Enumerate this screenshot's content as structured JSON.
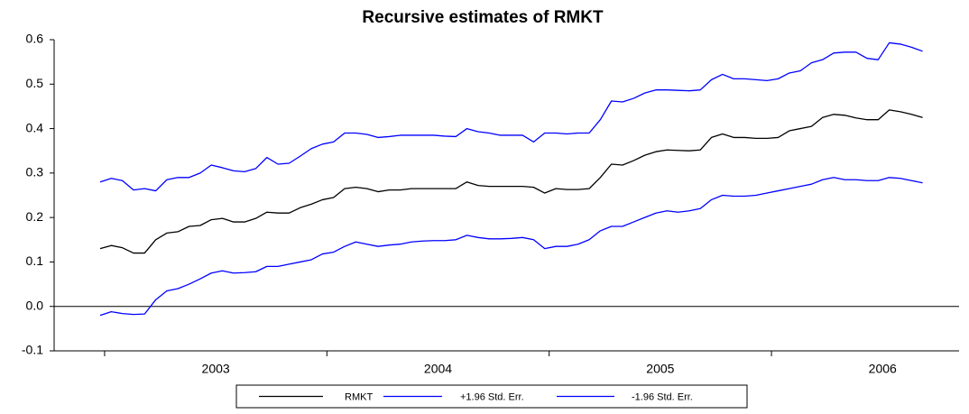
{
  "chart_data": {
    "type": "line",
    "title": "Recursive estimates of RMKT",
    "x": [
      2002.98,
      2003.03,
      2003.08,
      2003.13,
      2003.18,
      2003.23,
      2003.28,
      2003.33,
      2003.38,
      2003.43,
      2003.48,
      2003.53,
      2003.58,
      2003.63,
      2003.68,
      2003.73,
      2003.78,
      2003.83,
      2003.88,
      2003.93,
      2003.98,
      2004.03,
      2004.08,
      2004.13,
      2004.18,
      2004.23,
      2004.28,
      2004.33,
      2004.38,
      2004.43,
      2004.48,
      2004.53,
      2004.58,
      2004.63,
      2004.68,
      2004.73,
      2004.78,
      2004.83,
      2004.88,
      2004.93,
      2004.98,
      2005.03,
      2005.08,
      2005.13,
      2005.18,
      2005.23,
      2005.28,
      2005.33,
      2005.38,
      2005.43,
      2005.48,
      2005.53,
      2005.58,
      2005.63,
      2005.68,
      2005.73,
      2005.78,
      2005.83,
      2005.88,
      2005.93,
      2005.98,
      2006.03,
      2006.08,
      2006.13,
      2006.18,
      2006.23,
      2006.28,
      2006.33,
      2006.38,
      2006.43,
      2006.48,
      2006.53,
      2006.58,
      2006.63,
      2006.68
    ],
    "series": [
      {
        "name": "RMKT",
        "color": "#000000",
        "values": [
          0.13,
          0.137,
          0.132,
          0.12,
          0.12,
          0.15,
          0.165,
          0.168,
          0.18,
          0.182,
          0.195,
          0.198,
          0.19,
          0.19,
          0.198,
          0.212,
          0.21,
          0.21,
          0.222,
          0.23,
          0.24,
          0.245,
          0.265,
          0.268,
          0.265,
          0.258,
          0.262,
          0.262,
          0.265,
          0.265,
          0.265,
          0.265,
          0.265,
          0.28,
          0.272,
          0.27,
          0.27,
          0.27,
          0.27,
          0.268,
          0.255,
          0.265,
          0.263,
          0.263,
          0.265,
          0.29,
          0.32,
          0.318,
          0.328,
          0.34,
          0.348,
          0.352,
          0.351,
          0.35,
          0.352,
          0.38,
          0.388,
          0.38,
          0.38,
          0.378,
          0.378,
          0.38,
          0.395,
          0.4,
          0.405,
          0.425,
          0.432,
          0.43,
          0.424,
          0.42,
          0.42,
          0.442,
          0.438,
          0.432,
          0.425
        ]
      },
      {
        "name": "+1.96 Std. Err.",
        "color": "#0000ff",
        "values": [
          0.28,
          0.288,
          0.283,
          0.262,
          0.265,
          0.26,
          0.285,
          0.29,
          0.29,
          0.3,
          0.318,
          0.312,
          0.305,
          0.303,
          0.31,
          0.335,
          0.32,
          0.322,
          0.338,
          0.355,
          0.365,
          0.37,
          0.39,
          0.39,
          0.387,
          0.38,
          0.382,
          0.385,
          0.385,
          0.385,
          0.385,
          0.383,
          0.382,
          0.4,
          0.393,
          0.39,
          0.385,
          0.385,
          0.385,
          0.37,
          0.39,
          0.39,
          0.388,
          0.39,
          0.39,
          0.42,
          0.462,
          0.46,
          0.468,
          0.48,
          0.487,
          0.487,
          0.486,
          0.485,
          0.487,
          0.51,
          0.522,
          0.512,
          0.512,
          0.51,
          0.508,
          0.512,
          0.525,
          0.53,
          0.548,
          0.555,
          0.57,
          0.572,
          0.572,
          0.558,
          0.555,
          0.593,
          0.59,
          0.583,
          0.574
        ]
      },
      {
        "name": "-1.96 Std. Err.",
        "color": "#0000ff",
        "values": [
          -0.02,
          -0.012,
          -0.016,
          -0.018,
          -0.017,
          0.015,
          0.035,
          0.04,
          0.05,
          0.062,
          0.075,
          0.08,
          0.075,
          0.076,
          0.078,
          0.09,
          0.09,
          0.095,
          0.1,
          0.105,
          0.118,
          0.122,
          0.135,
          0.145,
          0.14,
          0.135,
          0.138,
          0.14,
          0.145,
          0.147,
          0.148,
          0.148,
          0.15,
          0.16,
          0.155,
          0.152,
          0.152,
          0.153,
          0.155,
          0.15,
          0.13,
          0.135,
          0.135,
          0.14,
          0.15,
          0.17,
          0.18,
          0.18,
          0.19,
          0.2,
          0.21,
          0.215,
          0.212,
          0.215,
          0.22,
          0.24,
          0.25,
          0.248,
          0.248,
          0.25,
          0.255,
          0.26,
          0.265,
          0.27,
          0.275,
          0.285,
          0.29,
          0.285,
          0.285,
          0.283,
          0.283,
          0.29,
          0.288,
          0.283,
          0.278
        ]
      }
    ],
    "xlim": [
      2002.773,
      2006.844
    ],
    "xticks": [
      {
        "value": 2003.5,
        "label": "2003"
      },
      {
        "value": 2004.5,
        "label": "2004"
      },
      {
        "value": 2005.5,
        "label": "2005"
      },
      {
        "value": 2006.5,
        "label": "2006"
      }
    ],
    "xtick_marks": [
      2003,
      2004,
      2005,
      2006
    ],
    "ylim": [
      -0.1,
      0.6
    ],
    "yticks": [
      -0.1,
      {
        "value": 0,
        "label": "0.0"
      },
      0.1,
      0.2,
      0.3,
      0.4,
      0.5,
      0.6
    ],
    "zero_line": true,
    "grid": false,
    "legend": "bottom"
  }
}
